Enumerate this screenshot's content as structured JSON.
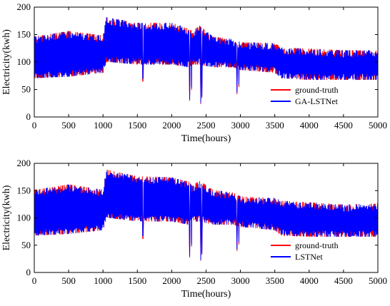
{
  "colors": {
    "ground_truth": "#ff0000",
    "prediction": "#0000ff",
    "axis": "#000000",
    "background": "#ffffff"
  },
  "chart_data": [
    {
      "type": "line",
      "xlabel": "Time(hours)",
      "ylabel": "Electricity(kwh)",
      "xlim": [
        0,
        5000
      ],
      "ylim": [
        0,
        200
      ],
      "xticks": [
        0,
        500,
        1000,
        1500,
        2000,
        2500,
        3000,
        3500,
        4000,
        4500,
        5000
      ],
      "yticks": [
        0,
        50,
        100,
        150,
        200
      ],
      "grid": false,
      "legend_position": "lower-right",
      "daily_profile_note": "",
      "x": [
        0,
        500,
        1000,
        1050,
        1500,
        2000,
        2250,
        2300,
        2400,
        2600,
        2900,
        3000,
        3500,
        3600,
        4000,
        4500,
        5000
      ],
      "envelope_high": [
        140,
        150,
        142,
        175,
        165,
        165,
        155,
        150,
        160,
        140,
        135,
        130,
        128,
        120,
        118,
        115,
        115
      ],
      "envelope_low": [
        75,
        78,
        85,
        105,
        100,
        100,
        95,
        100,
        100,
        95,
        95,
        90,
        85,
        75,
        72,
        72,
        72
      ],
      "dips": [
        {
          "x": 1580,
          "y": 65
        },
        {
          "x": 2260,
          "y": 30
        },
        {
          "x": 2290,
          "y": 50
        },
        {
          "x": 2420,
          "y": 24
        },
        {
          "x": 2440,
          "y": 35
        },
        {
          "x": 2950,
          "y": 42
        },
        {
          "x": 2980,
          "y": 55
        }
      ],
      "series": [
        {
          "name": "ground-truth",
          "color": "#ff0000"
        },
        {
          "name": "GA-LSTNet",
          "color": "#0000ff"
        }
      ]
    },
    {
      "type": "line",
      "xlabel": "Time(hours)",
      "ylabel": "Electricity(kwh)",
      "xlim": [
        0,
        5000
      ],
      "ylim": [
        0,
        200
      ],
      "xticks": [
        0,
        500,
        1000,
        1500,
        2000,
        2500,
        3000,
        3500,
        4000,
        4500,
        5000
      ],
      "yticks": [
        0,
        50,
        100,
        150,
        200
      ],
      "grid": false,
      "legend_position": "lower-right",
      "x": [
        0,
        500,
        1000,
        1050,
        1500,
        2000,
        2250,
        2300,
        2400,
        2600,
        2900,
        3000,
        3500,
        3600,
        4000,
        4500,
        5000
      ],
      "envelope_high": [
        145,
        155,
        145,
        182,
        170,
        168,
        160,
        152,
        162,
        145,
        140,
        133,
        130,
        125,
        122,
        118,
        120
      ],
      "envelope_low": [
        72,
        75,
        82,
        105,
        98,
        98,
        92,
        98,
        98,
        92,
        92,
        88,
        82,
        72,
        70,
        70,
        70
      ],
      "dips": [
        {
          "x": 1580,
          "y": 62
        },
        {
          "x": 2260,
          "y": 28
        },
        {
          "x": 2290,
          "y": 48
        },
        {
          "x": 2420,
          "y": 22
        },
        {
          "x": 2440,
          "y": 33
        },
        {
          "x": 2950,
          "y": 40
        },
        {
          "x": 2980,
          "y": 52
        }
      ],
      "series": [
        {
          "name": "ground-truth",
          "color": "#ff0000"
        },
        {
          "name": "LSTNet",
          "color": "#0000ff"
        }
      ]
    }
  ]
}
